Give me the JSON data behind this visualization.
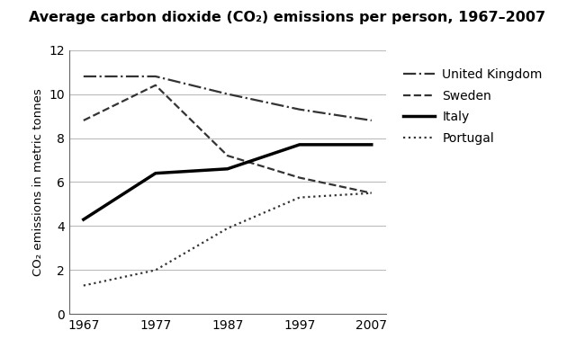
{
  "title": "Average carbon dioxide (CO₂) emissions per person, 1967–2007",
  "ylabel": "CO₂ emissions in metric tonnes",
  "years": [
    1967,
    1977,
    1987,
    1997,
    2007
  ],
  "series": {
    "United Kingdom": {
      "values": [
        10.8,
        10.8,
        10.0,
        9.3,
        8.8
      ],
      "linestyle": "dashdot",
      "color": "#333333",
      "linewidth": 1.6
    },
    "Sweden": {
      "values": [
        8.8,
        10.4,
        7.2,
        6.2,
        5.5
      ],
      "linestyle": "dashed",
      "color": "#333333",
      "linewidth": 1.6
    },
    "Italy": {
      "values": [
        4.3,
        6.4,
        6.6,
        7.7,
        7.7
      ],
      "linestyle": "solid",
      "color": "#000000",
      "linewidth": 2.5
    },
    "Portugal": {
      "values": [
        1.3,
        2.0,
        3.9,
        5.3,
        5.5
      ],
      "linestyle": "dotted",
      "color": "#333333",
      "linewidth": 1.6
    }
  },
  "ylim": [
    0,
    12
  ],
  "yticks": [
    0,
    2,
    4,
    6,
    8,
    10,
    12
  ],
  "xticks": [
    1967,
    1977,
    1987,
    1997,
    2007
  ],
  "background_color": "#ffffff",
  "grid_color": "#bbbbbb",
  "title_fontsize": 11.5,
  "title_fontweight": "bold",
  "label_fontsize": 9.5,
  "tick_fontsize": 10,
  "legend_fontsize": 10
}
